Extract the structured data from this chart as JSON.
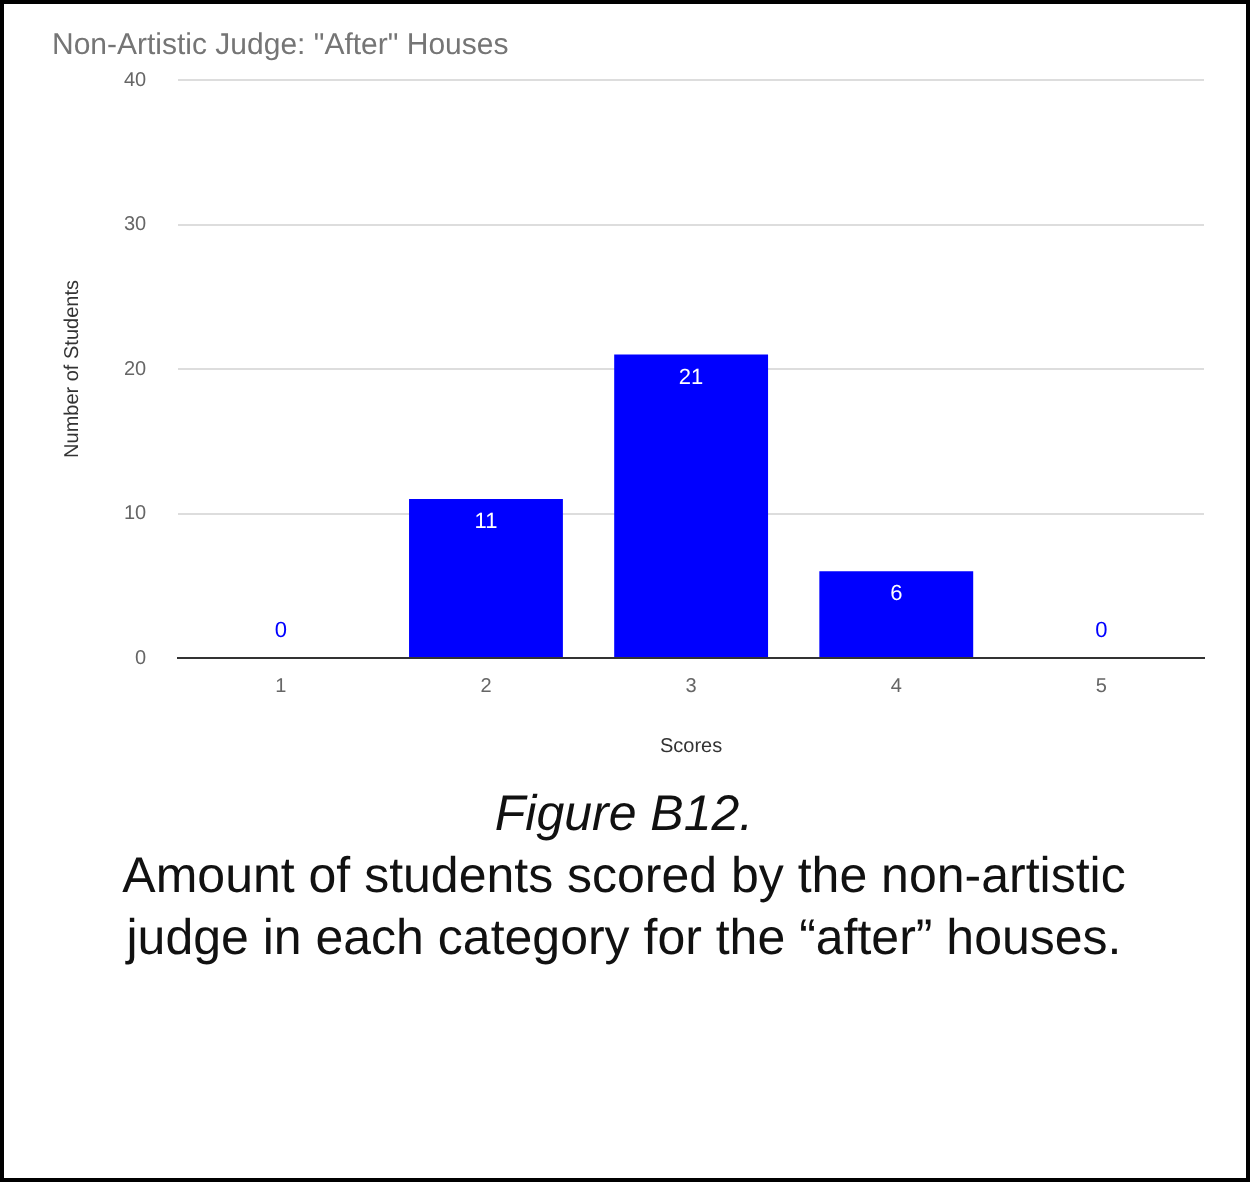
{
  "chart_data": {
    "type": "bar",
    "title": "Non-Artistic Judge: \"After\" Houses",
    "xlabel": "Scores",
    "ylabel": "Number of Students",
    "categories": [
      "1",
      "2",
      "3",
      "4",
      "5"
    ],
    "values": [
      0,
      11,
      21,
      6,
      0
    ],
    "color": "#0000ff",
    "ylim": [
      0,
      40
    ],
    "yticks": [
      0,
      10,
      20,
      30,
      40
    ],
    "grid": "y",
    "legend": false,
    "data_labels": true,
    "annotations": [
      "Figure B12.",
      "Amount of students scored by the non-artistic judge in each category for the “after” houses."
    ]
  }
}
